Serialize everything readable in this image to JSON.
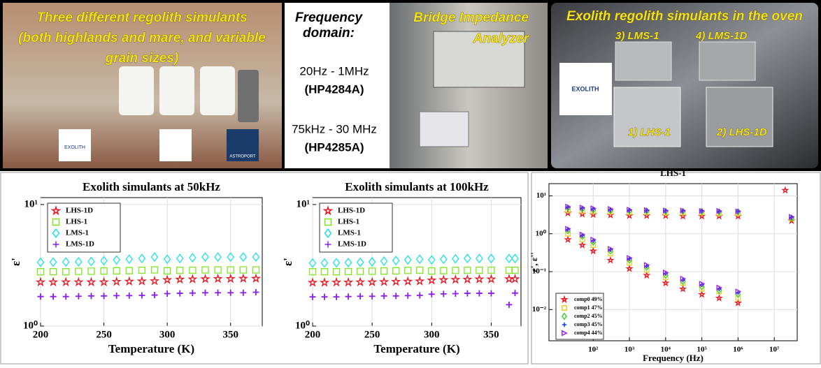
{
  "panels": {
    "simulants": {
      "title_lines": [
        "Three different regolith simulants",
        "(both highlands and mare, and variable",
        "grain sizes)"
      ],
      "logos": [
        "EXOLITH",
        "ASTROPORT"
      ]
    },
    "analyzer": {
      "heading_lines": [
        "Frequency",
        "domain:"
      ],
      "range1": "20Hz - 1MHz",
      "model1": "(HP4284A)",
      "range2": "75kHz - 30 MHz",
      "model2": "(HP4285A)",
      "photo_lines": [
        "Bridge Impedance",
        "Analyzer"
      ]
    },
    "oven": {
      "title": "Exolith regolith simulants in the oven",
      "logo": "EXOLITH",
      "labels": [
        "3) LMS-1",
        "4) LMS-1D",
        "1) LHS-1",
        "2) LHS-1D"
      ]
    }
  },
  "chart_data": [
    {
      "type": "scatter",
      "title": "Exolith simulants at 50kHz",
      "x_label": "Temperature (K)",
      "y_label": "ε'",
      "log_y": true,
      "grid": true,
      "legend": "upper left",
      "xlim": [
        200,
        375
      ],
      "ylim": [
        1,
        11.4
      ],
      "xticks": [
        200,
        250,
        300,
        350
      ],
      "yticks": [
        {
          "value": 1,
          "label": "10⁰"
        },
        {
          "value": 10,
          "label": "10¹"
        }
      ],
      "x": [
        200,
        210,
        220,
        230,
        240,
        250,
        260,
        270,
        280,
        290,
        300,
        310,
        320,
        330,
        340,
        350,
        360,
        370
      ],
      "series": [
        {
          "name": "LHS-1D",
          "color": "#e8141e",
          "marker": "star",
          "values": [
            2.3,
            2.3,
            2.3,
            2.3,
            2.3,
            2.3,
            2.32,
            2.33,
            2.34,
            2.35,
            2.4,
            2.42,
            2.43,
            2.44,
            2.45,
            2.45,
            2.46,
            2.46
          ]
        },
        {
          "name": "LHS-1",
          "color": "#7ee81e",
          "marker": "square",
          "values": [
            2.8,
            2.8,
            2.8,
            2.82,
            2.83,
            2.84,
            2.85,
            2.86,
            2.88,
            2.9,
            2.85,
            2.87,
            2.88,
            2.9,
            2.9,
            2.9,
            2.9,
            2.9
          ]
        },
        {
          "name": "LMS-1",
          "color": "#1ee0e8",
          "marker": "diamond",
          "values": [
            3.35,
            3.36,
            3.37,
            3.38,
            3.4,
            3.45,
            3.5,
            3.55,
            3.6,
            3.7,
            3.55,
            3.6,
            3.65,
            3.7,
            3.7,
            3.7,
            3.7,
            3.7
          ]
        },
        {
          "name": "LMS-1D",
          "color": "#8a1ee8",
          "marker": "plus",
          "values": [
            1.75,
            1.75,
            1.75,
            1.76,
            1.77,
            1.77,
            1.78,
            1.78,
            1.79,
            1.8,
            1.85,
            1.86,
            1.87,
            1.88,
            1.88,
            1.88,
            1.88,
            1.9
          ]
        }
      ]
    },
    {
      "type": "scatter",
      "title": "Exolith simulants at 100kHz",
      "x_label": "Temperature (K)",
      "y_label": "ε'",
      "log_y": true,
      "grid": true,
      "legend": "upper left",
      "xlim": [
        200,
        375
      ],
      "ylim": [
        1,
        11.4
      ],
      "xticks": [
        200,
        250,
        300,
        350
      ],
      "yticks": [
        {
          "value": 1,
          "label": "10⁰"
        },
        {
          "value": 10,
          "label": "10¹"
        }
      ],
      "x": [
        200,
        210,
        220,
        230,
        240,
        250,
        260,
        270,
        280,
        290,
        300,
        310,
        320,
        330,
        340,
        350,
        365,
        370
      ],
      "series": [
        {
          "name": "LHS-1D",
          "color": "#e8141e",
          "marker": "star",
          "values": [
            2.28,
            2.28,
            2.29,
            2.29,
            2.3,
            2.3,
            2.31,
            2.32,
            2.33,
            2.34,
            2.38,
            2.4,
            2.41,
            2.42,
            2.43,
            2.43,
            2.44,
            2.44
          ]
        },
        {
          "name": "LHS-1",
          "color": "#7ee81e",
          "marker": "square",
          "values": [
            2.8,
            2.8,
            2.8,
            2.81,
            2.82,
            2.83,
            2.84,
            2.85,
            2.87,
            2.88,
            2.84,
            2.86,
            2.87,
            2.88,
            2.88,
            2.88,
            2.88,
            2.88
          ]
        },
        {
          "name": "LMS-1",
          "color": "#1ee0e8",
          "marker": "diamond",
          "values": [
            3.3,
            3.31,
            3.32,
            3.33,
            3.35,
            3.38,
            3.42,
            3.46,
            3.5,
            3.55,
            3.5,
            3.55,
            3.58,
            3.6,
            3.6,
            3.6,
            3.6,
            3.6
          ]
        },
        {
          "name": "LMS-1D",
          "color": "#8a1ee8",
          "marker": "plus",
          "values": [
            1.74,
            1.74,
            1.74,
            1.75,
            1.76,
            1.76,
            1.77,
            1.77,
            1.78,
            1.79,
            1.83,
            1.84,
            1.85,
            1.86,
            1.86,
            1.86,
            1.5,
            1.87
          ]
        }
      ]
    },
    {
      "type": "scatter",
      "title": "LHS-1",
      "x_label": "Frequency (Hz)",
      "y_label": "ε', ε''",
      "log_x": true,
      "log_y": true,
      "grid": true,
      "legend": "lower left",
      "xlim": [
        6,
        43000000
      ],
      "ylim": [
        0.0015,
        21
      ],
      "xticks": [
        {
          "value": 100,
          "label": "10²"
        },
        {
          "value": 1000,
          "label": "10³"
        },
        {
          "value": 10000,
          "label": "10⁴"
        },
        {
          "value": 100000,
          "label": "10⁵"
        },
        {
          "value": 1000000,
          "label": "10⁶"
        },
        {
          "value": 10000000,
          "label": "10⁷"
        }
      ],
      "yticks": [
        {
          "value": 0.01,
          "label": "10⁻²"
        },
        {
          "value": 0.1,
          "label": "10⁻¹"
        },
        {
          "value": 1,
          "label": "10⁰"
        },
        {
          "value": 10,
          "label": "10¹"
        }
      ],
      "x": [
        20,
        50,
        100,
        300,
        1000,
        3000,
        10000,
        30000,
        100000,
        300000,
        1000000,
        20000000,
        30000000
      ],
      "series": [
        {
          "name": "comp0 49%",
          "color": "#e8141e",
          "marker": "star",
          "values": [
            3.5,
            3.3,
            3.2,
            3.1,
            3.0,
            3.0,
            3.0,
            2.9,
            2.9,
            2.9,
            2.9,
            14,
            2.2
          ],
          "values_imag": [
            0.7,
            0.5,
            0.35,
            0.2,
            0.12,
            0.08,
            0.05,
            0.035,
            0.025,
            0.02,
            0.015,
            null,
            null
          ]
        },
        {
          "name": "comp1 47%",
          "color": "#e8d21e",
          "marker": "square",
          "values": [
            4.2,
            4.0,
            3.9,
            3.8,
            3.7,
            3.7,
            3.6,
            3.6,
            3.6,
            3.5,
            3.5,
            null,
            2.5
          ],
          "values_imag": [
            1.0,
            0.7,
            0.5,
            0.3,
            0.17,
            0.11,
            0.07,
            0.05,
            0.035,
            0.03,
            0.02,
            null,
            null
          ]
        },
        {
          "name": "comp2 45%",
          "color": "#3ccc3c",
          "marker": "diamond",
          "values": [
            4.8,
            4.5,
            4.3,
            4.1,
            4.0,
            4.0,
            3.9,
            3.9,
            3.9,
            3.8,
            3.8,
            null,
            2.6
          ],
          "values_imag": [
            1.2,
            0.85,
            0.6,
            0.35,
            0.2,
            0.13,
            0.08,
            0.055,
            0.04,
            0.032,
            0.025,
            null,
            null
          ]
        },
        {
          "name": "comp3 45%",
          "color": "#1e3ce8",
          "marker": "plus",
          "values": [
            5.0,
            4.7,
            4.5,
            4.3,
            4.2,
            4.1,
            4.0,
            4.0,
            4.0,
            3.9,
            3.9,
            null,
            2.7
          ],
          "values_imag": [
            1.3,
            0.9,
            0.65,
            0.38,
            0.22,
            0.14,
            0.09,
            0.06,
            0.045,
            0.035,
            0.028,
            null,
            null
          ]
        },
        {
          "name": "comp4 44%",
          "color": "#a01ee8",
          "marker": "triangle",
          "values": [
            5.2,
            4.9,
            4.7,
            4.5,
            4.3,
            4.2,
            4.1,
            4.1,
            4.0,
            4.0,
            3.9,
            null,
            2.8
          ],
          "values_imag": [
            1.35,
            0.95,
            0.7,
            0.4,
            0.23,
            0.15,
            0.095,
            0.065,
            0.048,
            0.038,
            0.03,
            null,
            null
          ]
        }
      ]
    }
  ]
}
